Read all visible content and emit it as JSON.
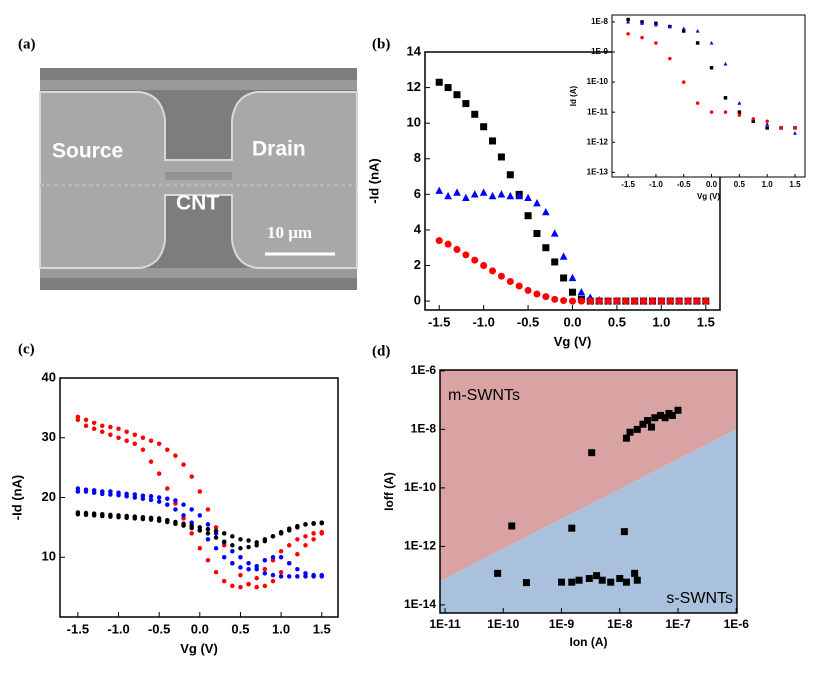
{
  "panels": [
    "(a)",
    "(b)",
    "(c)",
    "(d)"
  ],
  "image": {
    "source": "Source",
    "drain": "Drain",
    "cnt": "CNT",
    "scale": "10 μm"
  },
  "chart_data": [
    {
      "type": "scatter",
      "xlabel": "Vg (V)",
      "ylabel": "-Id (nA)",
      "x": [
        -1.5,
        -1.4,
        -1.3,
        -1.2,
        -1.1,
        -1.0,
        -0.9,
        -0.8,
        -0.7,
        -0.6,
        -0.5,
        -0.4,
        -0.3,
        -0.2,
        -0.1,
        0,
        0.1,
        0.2,
        0.3,
        0.4,
        0.5,
        0.6,
        0.7,
        0.8,
        0.9,
        1.0,
        1.1,
        1.2,
        1.3,
        1.4,
        1.5
      ],
      "series": [
        {
          "color": "#000000",
          "marker": "square",
          "values": [
            12.3,
            12,
            11.6,
            11.1,
            10.5,
            9.8,
            9.0,
            8.1,
            7.1,
            6.0,
            4.8,
            3.8,
            3.0,
            2.2,
            1.3,
            0.5,
            0.1,
            0,
            0,
            0,
            0,
            0,
            0,
            0,
            0,
            0,
            0,
            0,
            0,
            0,
            0
          ]
        },
        {
          "color": "#0000ff",
          "marker": "triangle",
          "values": [
            6.2,
            5.9,
            6.1,
            5.8,
            6.0,
            6.1,
            5.9,
            6.0,
            5.9,
            5.9,
            5.8,
            5.5,
            5.0,
            3.8,
            2.5,
            1.3,
            0.5,
            0.2,
            0.05,
            0,
            0,
            0,
            0,
            0,
            0,
            0,
            0,
            0,
            0,
            0,
            0
          ]
        },
        {
          "color": "#ff0000",
          "marker": "circle",
          "values": [
            3.4,
            3.2,
            2.9,
            2.6,
            2.3,
            2.0,
            1.7,
            1.4,
            1.1,
            0.85,
            0.6,
            0.4,
            0.25,
            0.1,
            0.03,
            0,
            0,
            0,
            0,
            0,
            0,
            0,
            0,
            0,
            0,
            0,
            0,
            0,
            0,
            0,
            0
          ]
        }
      ],
      "xlim": [
        -1.66,
        1.66
      ],
      "ylim": [
        -0.5,
        14
      ],
      "xticks": [
        -1.5,
        {
          "value": -1,
          "label": "-1.0"
        },
        -0.5,
        {
          "value": 0,
          "label": "0.0"
        },
        0.5,
        {
          "value": 1,
          "label": "1.0"
        },
        1.5
      ],
      "yticks": [
        0,
        2,
        4,
        6,
        8,
        10,
        12,
        14
      ]
    },
    {
      "type": "scatter",
      "xlabel": "Vg (V)",
      "ylabel": "Id (A)",
      "ylog": true,
      "x": [
        -1.5,
        -1.25,
        -1,
        -0.75,
        -0.5,
        -0.25,
        0,
        0.25,
        0.5,
        0.75,
        1,
        1.25,
        1.5
      ],
      "series": [
        {
          "color": "#000000",
          "marker": "square",
          "values": [
            1.2e-08,
            1e-08,
            9e-09,
            7e-09,
            5e-09,
            2e-09,
            3e-10,
            3e-11,
            1e-11,
            5e-12,
            3e-12,
            3e-12,
            3e-12
          ]
        },
        {
          "color": "#0000ff",
          "marker": "triangle",
          "values": [
            1e-08,
            9e-09,
            8e-09,
            7e-09,
            6e-09,
            5e-09,
            2e-09,
            4e-10,
            2e-11,
            6e-12,
            4e-12,
            3e-12,
            2e-12
          ]
        },
        {
          "color": "#ff0000",
          "marker": "circle",
          "values": [
            4e-09,
            3e-09,
            2e-09,
            6e-10,
            1e-10,
            2e-11,
            1e-11,
            1e-11,
            8e-12,
            6e-12,
            5e-12,
            3e-12,
            3e-12
          ]
        }
      ],
      "xlim": [
        -1.79,
        1.68
      ],
      "ylim": [
        7e-14,
        1.7e-08
      ],
      "xticks": [
        -1.5,
        {
          "value": -1,
          "label": "-1.0"
        },
        -0.5,
        {
          "value": 0,
          "label": "0.0"
        },
        0.5,
        {
          "value": 1,
          "label": "1.0"
        },
        1.5
      ],
      "yticks": [
        {
          "value": 1e-08,
          "label": "1E-8"
        },
        {
          "value": 1e-09,
          "label": "1E-9"
        },
        {
          "value": 1e-10,
          "label": "1E-10"
        },
        {
          "value": 1e-11,
          "label": "1E-11"
        },
        {
          "value": 1e-12,
          "label": "1E-12"
        },
        {
          "value": 1e-13,
          "label": "1E-13"
        }
      ]
    },
    {
      "type": "scatter",
      "xlabel": "Vg (V)",
      "ylabel": "-Id (nA)",
      "x": [
        -1.5,
        -1.4,
        -1.3,
        -1.2,
        -1.1,
        -1.0,
        -0.9,
        -0.8,
        -0.7,
        -0.6,
        -0.5,
        -0.4,
        -0.3,
        -0.2,
        -0.1,
        0,
        0.1,
        0.2,
        0.3,
        0.4,
        0.5,
        0.6,
        0.7,
        0.8,
        0.9,
        1.0,
        1.1,
        1.2,
        1.3,
        1.4,
        1.5
      ],
      "series": [
        {
          "color": "#ff0000",
          "marker": "circle",
          "values": [
            33.5,
            33,
            32.5,
            32,
            31.8,
            31.5,
            31,
            30.5,
            30,
            29.5,
            29,
            28,
            27,
            25.5,
            23.5,
            21,
            18,
            15,
            12,
            9,
            7,
            5.5,
            5,
            5.2,
            6,
            7.5,
            9,
            10.5,
            12,
            13,
            14
          ]
        },
        {
          "color": "#ff0000",
          "marker": "circle",
          "values": [
            33,
            32,
            31.5,
            31,
            30.5,
            30,
            29.5,
            29,
            28,
            26,
            24,
            21.5,
            19,
            16.5,
            14,
            11.5,
            9.5,
            7.5,
            6,
            5.2,
            5,
            5.5,
            6.5,
            8,
            9.5,
            11,
            12,
            13,
            13.5,
            14,
            14.2
          ]
        },
        {
          "color": "#0000ff",
          "marker": "circle",
          "values": [
            21.5,
            21.3,
            21.2,
            21,
            21,
            20.8,
            20.6,
            20.5,
            20.3,
            20.2,
            20,
            19.8,
            19.5,
            18.8,
            18,
            17,
            15.5,
            14,
            12.5,
            11,
            10,
            9,
            8,
            7.3,
            7,
            6.8,
            6.8,
            6.8,
            6.8,
            6.8,
            6.8
          ]
        },
        {
          "color": "#0000ff",
          "marker": "circle",
          "values": [
            21,
            21,
            20.8,
            20.6,
            20.5,
            20.4,
            20.2,
            20,
            19.8,
            19.6,
            19.3,
            18.8,
            18,
            17,
            15.8,
            14.5,
            13,
            11.5,
            10,
            9,
            8.3,
            8,
            8.5,
            9.5,
            10,
            10,
            9,
            8,
            7.3,
            7,
            7
          ]
        },
        {
          "color": "#000000",
          "marker": "circle",
          "values": [
            17.5,
            17.4,
            17.3,
            17.2,
            17.1,
            17,
            16.9,
            16.8,
            16.7,
            16.6,
            16.5,
            16.2,
            15.9,
            15.6,
            15.3,
            15,
            14.7,
            14.4,
            14,
            13.5,
            13,
            12.8,
            12.5,
            13,
            13.5,
            14,
            14.5,
            15,
            15.5,
            15.7,
            15.8
          ]
        },
        {
          "color": "#000000",
          "marker": "circle",
          "values": [
            17.2,
            17.1,
            17,
            16.9,
            16.8,
            16.7,
            16.6,
            16.5,
            16.4,
            16.3,
            16.1,
            15.9,
            15.6,
            15.3,
            14.9,
            14.5,
            14,
            13.3,
            12.6,
            12,
            11.5,
            11.7,
            12,
            12.7,
            13.5,
            14.2,
            14.8,
            15.2,
            15.5,
            15.6,
            15.7
          ]
        }
      ],
      "xlim": [
        -1.72,
        1.7
      ],
      "ylim": [
        0,
        40
      ],
      "xticks": [
        -1.5,
        {
          "value": -1,
          "label": "-1.0"
        },
        -0.5,
        {
          "value": 0,
          "label": "0.0"
        },
        0.5,
        {
          "value": 1,
          "label": "1.0"
        },
        1.5
      ],
      "yticks": [
        10,
        20,
        30,
        40
      ]
    },
    {
      "type": "scatter",
      "xlabel": "Ion (A)",
      "ylabel": "Ioff (A)",
      "xlog": true,
      "ylog": true,
      "x": [
        1.3e-08,
        1.5e-08,
        2e-08,
        2.5e-08,
        3e-08,
        3.5e-08,
        4e-08,
        5e-08,
        6e-08,
        7e-08,
        8e-08,
        1e-07,
        3.3e-09,
        1.4e-10,
        1.5e-09,
        1.2e-08,
        8e-11,
        2.5e-10,
        1e-09,
        1.5e-09,
        2e-09,
        3e-09,
        4e-09,
        5e-09,
        7e-09,
        1e-08,
        1.3e-08,
        1.8e-08,
        2e-08
      ],
      "series": [
        {
          "color": "#000000",
          "marker": "square",
          "values": [
            5e-09,
            8e-09,
            1e-08,
            1.5e-08,
            2e-08,
            1.2e-08,
            2.5e-08,
            3e-08,
            2.5e-08,
            3.5e-08,
            3e-08,
            4.5e-08,
            1.6e-09,
            5e-12,
            4.2e-12,
            3.2e-12,
            1.2e-13,
            5.8e-14,
            6e-14,
            6e-14,
            7e-14,
            8e-14,
            1e-13,
            7e-14,
            6e-14,
            8e-14,
            6e-14,
            1.2e-13,
            7e-14
          ]
        }
      ],
      "regions": [
        {
          "label": "m-SWNTs",
          "color": "#d9a3a3"
        },
        {
          "label": "s-SWNTs",
          "color": "#a9c1dd"
        }
      ],
      "boundary": {
        "x": [
          1e-11,
          1e-06
        ],
        "y": [
          8e-14,
          1e-08
        ]
      },
      "xlim": [
        8.2e-12,
        1.03e-06
      ],
      "ylim": [
        5.3e-15,
        1.07e-06
      ],
      "xticks": [
        {
          "value": 1e-11,
          "label": "1E-11"
        },
        {
          "value": 1e-10,
          "label": "1E-10"
        },
        {
          "value": 1e-09,
          "label": "1E-9"
        },
        {
          "value": 1e-08,
          "label": "1E-8"
        },
        {
          "value": 1e-07,
          "label": "1E-7"
        },
        {
          "value": 1e-06,
          "label": "1E-6"
        }
      ],
      "yticks": [
        {
          "value": 1e-06,
          "label": "1E-6"
        },
        {
          "value": 1e-08,
          "label": "1E-8"
        },
        {
          "value": 1e-10,
          "label": "1E-10"
        },
        {
          "value": 1e-12,
          "label": "1E-12"
        },
        {
          "value": 1e-14,
          "label": "1E-14"
        }
      ]
    }
  ]
}
